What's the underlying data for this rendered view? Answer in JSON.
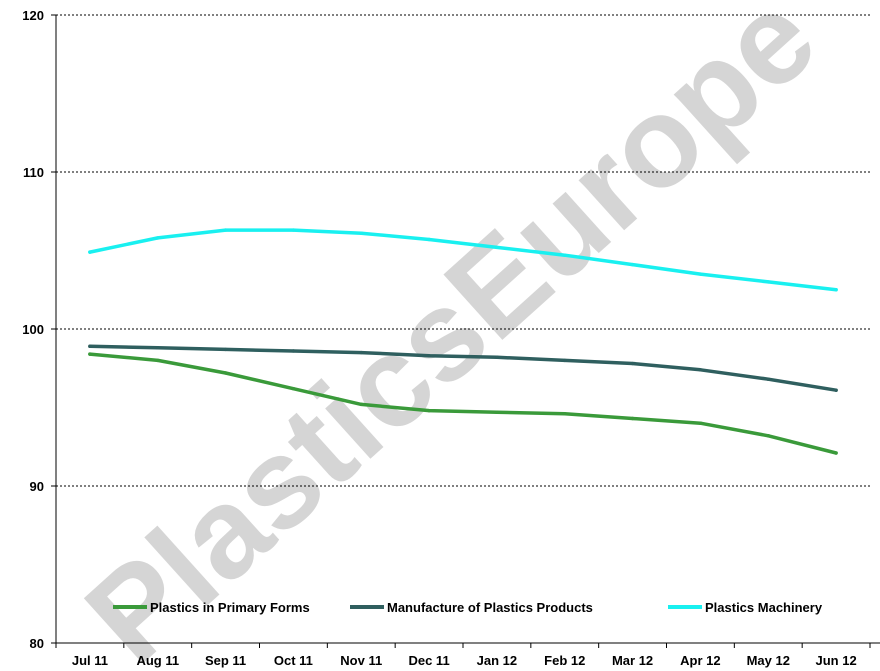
{
  "watermark": "PlasticsEurope",
  "chart_data": {
    "type": "line",
    "categories": [
      "Jul 11",
      "Aug 11",
      "Sep 11",
      "Oct 11",
      "Nov 11",
      "Dec 11",
      "Jan 12",
      "Feb 12",
      "Mar 12",
      "Apr 12",
      "May 12",
      "Jun 12"
    ],
    "ylim": [
      80,
      120
    ],
    "yticks": [
      80,
      90,
      100,
      110,
      120
    ],
    "grid": true,
    "legend_position": "bottom",
    "series": [
      {
        "name": "Plastics in Primary Forms",
        "color": "#3a9a3a",
        "values": [
          98.4,
          98.0,
          97.2,
          96.2,
          95.2,
          94.8,
          94.7,
          94.6,
          94.3,
          94.0,
          93.2,
          92.1
        ]
      },
      {
        "name": "Manufacture of Plastics Products",
        "color": "#2f5f5f",
        "values": [
          98.9,
          98.8,
          98.7,
          98.6,
          98.5,
          98.3,
          98.2,
          98.0,
          97.8,
          97.4,
          96.8,
          96.1
        ]
      },
      {
        "name": "Plastics Machinery",
        "color": "#19f0f0",
        "values": [
          104.9,
          105.8,
          106.3,
          106.3,
          106.1,
          105.7,
          105.2,
          104.7,
          104.1,
          103.5,
          103.0,
          102.5
        ]
      }
    ]
  }
}
